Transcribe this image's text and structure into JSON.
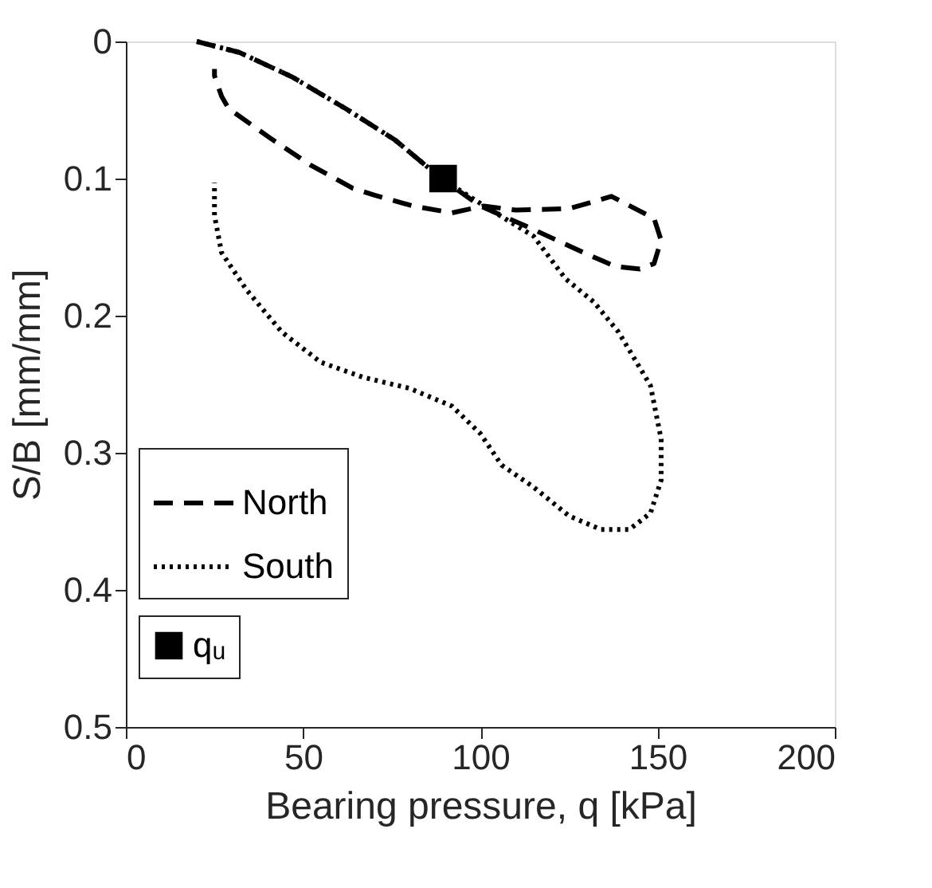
{
  "chart_data": {
    "type": "line",
    "xlabel": "Bearing pressure, q [kPa]",
    "ylabel": "S/B [mm/mm]",
    "xlim": [
      0,
      200
    ],
    "xticks": [
      0,
      50,
      100,
      150,
      200
    ],
    "ylim": [
      0.5,
      0
    ],
    "yticks": [
      0,
      0.1,
      0.2,
      0.3,
      0.4,
      0.5
    ],
    "grid": false,
    "legend": "bottom left",
    "series": [
      {
        "name": "North",
        "color": "#000000",
        "line_style": "dashed",
        "x": [
          20,
          32,
          47,
          62,
          76,
          89,
          100,
          114,
          130,
          138,
          145,
          149,
          151,
          149,
          137,
          125,
          110,
          101,
          92,
          81,
          70,
          64,
          52,
          41,
          29,
          27,
          25,
          25
        ],
        "values": [
          0,
          0.008,
          0.026,
          0.049,
          0.072,
          0.1,
          0.12,
          0.136,
          0.155,
          0.164,
          0.166,
          0.162,
          0.145,
          0.129,
          0.113,
          0.122,
          0.123,
          0.12,
          0.125,
          0.12,
          0.112,
          0.107,
          0.09,
          0.071,
          0.049,
          0.04,
          0.025,
          0.02
        ]
      },
      {
        "name": "South",
        "color": "#000000",
        "line_style": "dotted",
        "x": [
          20,
          32,
          47,
          62,
          76,
          89,
          103,
          115,
          124,
          132,
          139,
          148,
          151,
          151,
          148,
          142,
          134,
          125,
          115,
          106,
          100,
          92,
          80,
          67,
          55,
          44,
          34,
          27,
          25,
          25
        ],
        "values": [
          0,
          0.008,
          0.026,
          0.049,
          0.072,
          0.1,
          0.123,
          0.142,
          0.173,
          0.19,
          0.212,
          0.251,
          0.29,
          0.32,
          0.344,
          0.356,
          0.356,
          0.346,
          0.325,
          0.309,
          0.286,
          0.266,
          0.253,
          0.245,
          0.234,
          0.212,
          0.181,
          0.154,
          0.127,
          0.103
        ]
      },
      {
        "name": "qᵤ",
        "type": "scatter",
        "marker": "square",
        "color": "#000000",
        "x": [
          89.5
        ],
        "values": [
          0.1
        ]
      }
    ]
  }
}
